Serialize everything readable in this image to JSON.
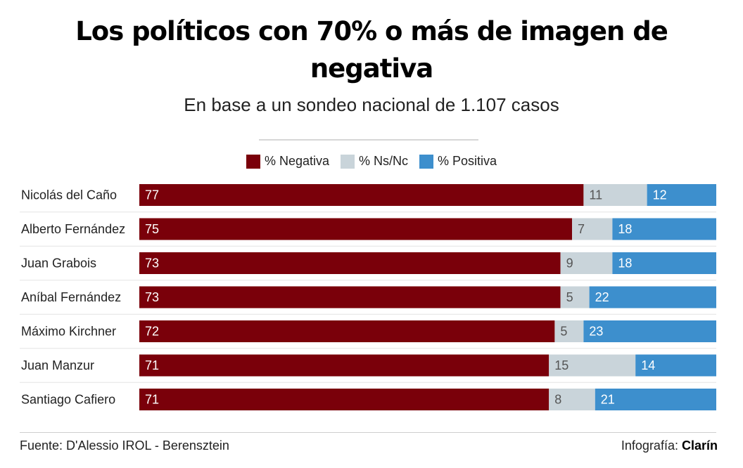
{
  "chart_data": {
    "type": "bar",
    "orientation": "horizontal",
    "stacked": true,
    "title": "Los políticos con 70% o más de imagen de negativa",
    "subtitle": "En base a un sondeo nacional de 1.107 casos",
    "categories": [
      "Nicolás del Caño",
      "Alberto Fernández",
      "Juan Grabois",
      "Aníbal Fernández",
      "Máximo Kirchner",
      "Juan Manzur",
      "Santiago Cafiero"
    ],
    "series": [
      {
        "name": "% Negativa",
        "color": "#7a000a",
        "label_color": "#ffffff",
        "values": [
          77,
          75,
          73,
          73,
          72,
          71,
          71
        ]
      },
      {
        "name": "% Ns/Nc",
        "color": "#c9d4da",
        "label_color": "#555555",
        "values": [
          11,
          7,
          9,
          5,
          5,
          15,
          8
        ]
      },
      {
        "name": "% Positiva",
        "color": "#3d8fcd",
        "label_color": "#ffffff",
        "values": [
          12,
          18,
          18,
          22,
          23,
          14,
          21
        ]
      }
    ],
    "xlim": [
      0,
      100
    ],
    "legend_position": "top-center",
    "grid": false
  },
  "footer": {
    "source": "Fuente: D'Alessio IROL - Berensztein",
    "credit_prefix": "Infografía:",
    "credit_brand": "Clarín"
  }
}
